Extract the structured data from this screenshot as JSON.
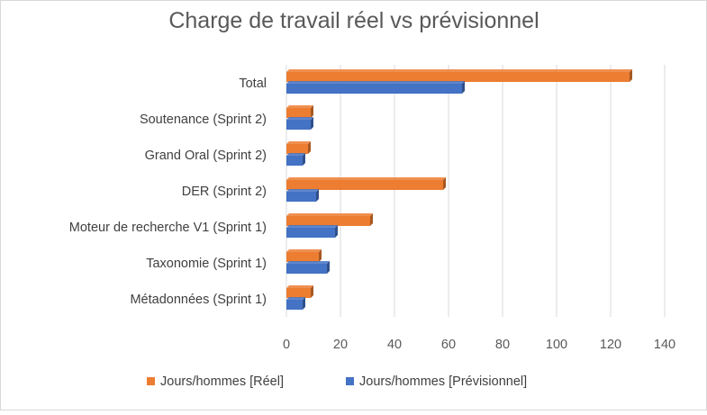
{
  "chart_data": {
    "type": "bar",
    "orientation": "horizontal",
    "title": "Charge de travail réel vs prévisionnel",
    "categories": [
      "Total",
      "Soutenance (Sprint 2)",
      "Grand Oral (Sprint 2)",
      "DER (Sprint 2)",
      "Moteur de recherche V1 (Sprint 1)",
      "Taxonomie (Sprint 1)",
      "Métadonnées (Sprint 1)"
    ],
    "series": [
      {
        "name": "Jours/hommes [Réel]",
        "color": "#ED7D31",
        "values": [
          127,
          9,
          8,
          58,
          31,
          12,
          9
        ]
      },
      {
        "name": "Jours/hommes [Prévisionnel]",
        "color": "#4472C4",
        "values": [
          65,
          9,
          6,
          11,
          18,
          15,
          6
        ]
      }
    ],
    "xlim": [
      0,
      140
    ],
    "xticks": [
      0,
      20,
      40,
      60,
      80,
      100,
      120,
      140
    ],
    "grid": true,
    "legend_position": "bottom"
  }
}
